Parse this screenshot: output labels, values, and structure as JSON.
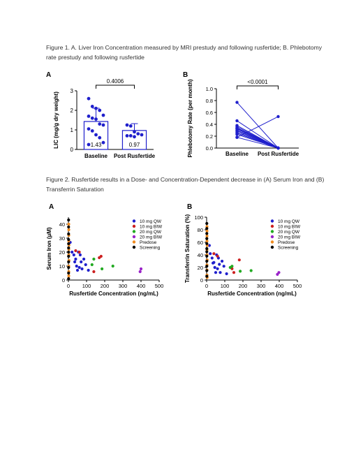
{
  "figure1": {
    "caption": "Figure 1. A. Liver Iron Concentration measured by MRI prestudy and following rusfertide; B. Phlebotomy rate prestudy and following rusfertide",
    "panelA": {
      "label": "A",
      "chart_data": {
        "type": "bar",
        "categories": [
          "Baseline",
          "Post Rusfertide"
        ],
        "values": [
          1.43,
          0.97
        ],
        "value_labels": [
          "1.43",
          "0.97"
        ],
        "error_sd": [
          0.68,
          0.35
        ],
        "points": [
          [
            2.6,
            2.2,
            2.1,
            2.0,
            1.75,
            1.7,
            1.6,
            1.55,
            1.3,
            1.25,
            1.05,
            0.95,
            0.75,
            0.6,
            0.35,
            0.25
          ],
          [
            1.25,
            1.2,
            0.9,
            0.8,
            0.75,
            0.7,
            0.7,
            0.65
          ]
        ],
        "ylabel": "LIC (mg/g dry weight)",
        "ylim": [
          0,
          3
        ],
        "yticks": [
          "0",
          "1",
          "2",
          "3"
        ],
        "p_value": "0.4006",
        "color": "#1f1fcc"
      }
    },
    "panelB": {
      "label": "B",
      "chart_data": {
        "type": "line",
        "categories": [
          "Baseline",
          "Post Rusfertide"
        ],
        "pairs": [
          [
            0.77,
            0.0
          ],
          [
            0.46,
            0.0
          ],
          [
            0.38,
            0.0
          ],
          [
            0.36,
            0.0
          ],
          [
            0.34,
            0.0
          ],
          [
            0.33,
            0.0
          ],
          [
            0.32,
            0.0
          ],
          [
            0.3,
            0.0
          ],
          [
            0.29,
            0.0
          ],
          [
            0.27,
            0.0
          ],
          [
            0.25,
            0.0
          ],
          [
            0.23,
            0.0
          ],
          [
            0.18,
            0.0
          ],
          [
            0.18,
            0.53
          ]
        ],
        "ylabel": "Phlebotomy Rate (per month)",
        "ylim": [
          0,
          1.0
        ],
        "yticks": [
          "0.0",
          "0.2",
          "0.4",
          "0.6",
          "0.8",
          "1.0"
        ],
        "p_value": "<0.0001",
        "color": "#1f1fcc"
      }
    }
  },
  "figure2": {
    "caption": "Figure 2. Rusfertide results in a Dose- and Concentration-Dependent decrease in (A) Serum Iron and (B) Transferrin Saturation",
    "legend": [
      {
        "name": "10 mg QW",
        "color": "#1f1fcc"
      },
      {
        "name": "10 mg BIW",
        "color": "#cc2020"
      },
      {
        "name": "20 mg QW",
        "color": "#22aa22"
      },
      {
        "name": "20 mg BIW",
        "color": "#9a22c8"
      },
      {
        "name": "Predose",
        "color": "#f08a1e"
      },
      {
        "name": "Screening",
        "color": "#000000"
      }
    ],
    "panelA": {
      "label": "A",
      "chart_data": {
        "type": "scatter",
        "xlabel": "Rusfertide Concentration (ng/mL)",
        "ylabel": "Serum Iron (µM)",
        "xlim": [
          0,
          500
        ],
        "ylim": [
          0,
          45
        ],
        "xticks": [
          "0",
          "100",
          "200",
          "300",
          "400",
          "500"
        ],
        "yticks": [
          "0",
          "10",
          "20",
          "30",
          "40"
        ],
        "series": [
          {
            "name": "10 mg QW",
            "points": [
              [
                10,
                27
              ],
              [
                20,
                20
              ],
              [
                30,
                18
              ],
              [
                40,
                15
              ],
              [
                45,
                10
              ],
              [
                55,
                20
              ],
              [
                65,
                18
              ],
              [
                60,
                9
              ],
              [
                70,
                13
              ],
              [
                75,
                8
              ],
              [
                85,
                15
              ],
              [
                95,
                11
              ],
              [
                110,
                7
              ],
              [
                35,
                13
              ],
              [
                50,
                7
              ]
            ]
          },
          {
            "name": "10 mg BIW",
            "points": [
              [
                40,
                21
              ],
              [
                60,
                20
              ],
              [
                170,
                16
              ],
              [
                180,
                17
              ],
              [
                140,
                6
              ]
            ]
          },
          {
            "name": "20 mg QW",
            "points": [
              [
                140,
                15
              ],
              [
                185,
                8
              ],
              [
                245,
                10
              ],
              [
                130,
                11
              ]
            ]
          },
          {
            "name": "20 mg BIW",
            "points": [
              [
                395,
                6
              ],
              [
                400,
                8
              ]
            ]
          },
          {
            "name": "Predose",
            "points": [
              [
                2,
                40
              ],
              [
                2,
                36
              ],
              [
                2,
                32
              ],
              [
                2,
                28
              ],
              [
                3,
                25
              ],
              [
                2,
                22
              ],
              [
                2,
                18
              ],
              [
                3,
                14
              ],
              [
                2,
                10
              ],
              [
                2,
                6
              ],
              [
                2,
                3
              ]
            ]
          },
          {
            "name": "Screening",
            "points": [
              [
                1,
                43
              ],
              [
                1,
                38
              ],
              [
                1,
                33
              ],
              [
                1,
                29
              ],
              [
                1,
                26
              ],
              [
                1,
                23
              ],
              [
                1,
                20
              ],
              [
                1,
                17
              ],
              [
                1,
                13
              ],
              [
                1,
                9
              ],
              [
                1,
                5
              ],
              [
                1,
                1
              ]
            ]
          }
        ]
      }
    },
    "panelB": {
      "label": "B",
      "chart_data": {
        "type": "scatter",
        "xlabel": "Rusfertide Concentration (ng/mL)",
        "ylabel": "Transferrin Saturation (%)",
        "xlim": [
          0,
          500
        ],
        "ylim": [
          0,
          100
        ],
        "xticks": [
          "0",
          "100",
          "200",
          "300",
          "400",
          "500"
        ],
        "yticks": [
          "0",
          "20",
          "40",
          "60",
          "80",
          "100"
        ],
        "series": [
          {
            "name": "10 mg QW",
            "points": [
              [
                15,
                55
              ],
              [
                20,
                42
              ],
              [
                30,
                35
              ],
              [
                40,
                28
              ],
              [
                45,
                20
              ],
              [
                55,
                40
              ],
              [
                65,
                35
              ],
              [
                60,
                18
              ],
              [
                70,
                25
              ],
              [
                75,
                12
              ],
              [
                85,
                30
              ],
              [
                95,
                22
              ],
              [
                110,
                10
              ],
              [
                35,
                27
              ],
              [
                50,
                12
              ]
            ]
          },
          {
            "name": "10 mg BIW",
            "points": [
              [
                40,
                42
              ],
              [
                60,
                38
              ],
              [
                180,
                32
              ],
              [
                140,
                18
              ],
              [
                150,
                12
              ]
            ]
          },
          {
            "name": "20 mg QW",
            "points": [
              [
                140,
                22
              ],
              [
                185,
                14
              ],
              [
                245,
                15
              ],
              [
                130,
                20
              ]
            ]
          },
          {
            "name": "20 mg BIW",
            "points": [
              [
                390,
                9
              ],
              [
                398,
                12
              ]
            ]
          },
          {
            "name": "Predose",
            "points": [
              [
                2,
                85
              ],
              [
                2,
                78
              ],
              [
                2,
                70
              ],
              [
                2,
                62
              ],
              [
                3,
                55
              ],
              [
                2,
                48
              ],
              [
                2,
                40
              ],
              [
                3,
                32
              ],
              [
                2,
                24
              ],
              [
                2,
                16
              ],
              [
                2,
                8
              ],
              [
                3,
                4
              ]
            ]
          },
          {
            "name": "Screening",
            "points": [
              [
                1,
                90
              ],
              [
                1,
                82
              ],
              [
                1,
                74
              ],
              [
                1,
                66
              ],
              [
                1,
                58
              ],
              [
                1,
                50
              ],
              [
                1,
                45
              ],
              [
                1,
                38
              ],
              [
                1,
                30
              ],
              [
                1,
                22
              ],
              [
                1,
                15
              ],
              [
                1,
                6
              ]
            ]
          }
        ]
      }
    }
  }
}
